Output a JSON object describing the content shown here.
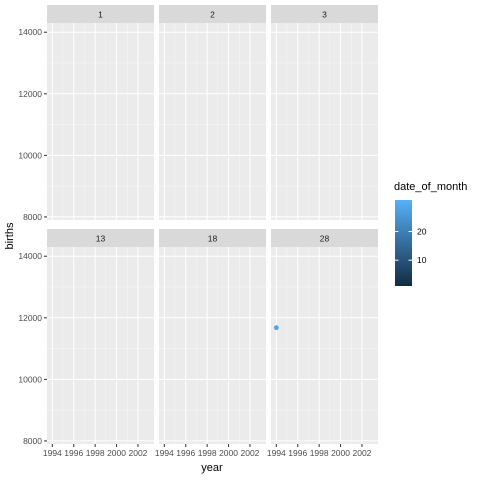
{
  "chart_data": {
    "type": "scatter",
    "facet_by": "date_of_month",
    "facets": [
      "1",
      "2",
      "3",
      "13",
      "18",
      "28"
    ],
    "xlabel": "year",
    "ylabel": "births",
    "xlim": [
      1993.5,
      2003.5
    ],
    "ylim": [
      7900,
      14300
    ],
    "x_ticks": [
      1994,
      1996,
      1998,
      2000,
      2002
    ],
    "x_tick_labels": [
      "1994",
      "1996",
      "1998",
      "2000",
      "2002"
    ],
    "y_ticks": [
      8000,
      10000,
      12000,
      14000
    ],
    "y_tick_labels": [
      "8000",
      "10000",
      "12000",
      "14000"
    ],
    "grid": true,
    "points": [
      {
        "facet": "28",
        "x": 1994,
        "y": 11680,
        "date_of_month": 28
      }
    ],
    "legend": {
      "title": "date_of_month",
      "type": "colorbar",
      "range": [
        1,
        31
      ],
      "ticks": [
        10,
        20
      ],
      "tick_labels": [
        "10",
        "20"
      ],
      "low_color": "#132B43",
      "high_color": "#56B1F7",
      "placement": "right"
    },
    "colors": {
      "panel_bg": "#EBEBEB",
      "strip_bg": "#D9D9D9",
      "grid_major": "#FFFFFF"
    }
  }
}
